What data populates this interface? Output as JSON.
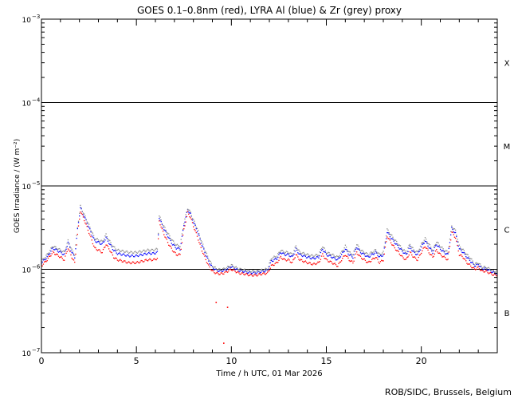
{
  "chart_data": {
    "type": "scatter",
    "title": "GOES 0.1–0.8nm (red), LYRA Al (blue) & Zr (grey) proxy",
    "xlabel": "Time / h UTC, 01 Mar 2026",
    "ylabel": "GOES Irradiance / (W m⁻²)",
    "xlim": [
      0,
      24
    ],
    "ylim": [
      1e-07,
      0.001
    ],
    "yscale": "log",
    "x_ticks": [
      0,
      5,
      10,
      15,
      20
    ],
    "x_tick_labels": [
      "0",
      "5",
      "10",
      "15",
      "20"
    ],
    "y_tick_exponents": [
      -3,
      -4,
      -5,
      -6,
      -7
    ],
    "flare_class_lines": [
      0.0001,
      1e-05,
      1e-06
    ],
    "flare_classes": [
      {
        "label": "X",
        "value": 0.0003
      },
      {
        "label": "M",
        "value": 3e-05
      },
      {
        "label": "C",
        "value": 3e-06
      },
      {
        "label": "B",
        "value": 3e-07
      }
    ],
    "series": [
      {
        "name": "GOES 0.1–0.8nm",
        "color": "#ff0000",
        "x": [
          0.0,
          0.3,
          0.6,
          0.8,
          1.0,
          1.2,
          1.4,
          1.6,
          1.75,
          1.9,
          2.05,
          2.2,
          2.4,
          2.6,
          2.8,
          3.0,
          3.2,
          3.4,
          3.6,
          3.8,
          4.0,
          4.3,
          4.6,
          5.0,
          5.3,
          5.6,
          5.9,
          6.1,
          6.2,
          6.35,
          6.5,
          6.7,
          6.9,
          7.1,
          7.3,
          7.5,
          7.7,
          7.85,
          8.0,
          8.2,
          8.4,
          8.6,
          8.8,
          9.0,
          9.2,
          9.4,
          9.6,
          9.8,
          10.0,
          10.2,
          10.4,
          10.7,
          11.0,
          11.3,
          11.6,
          11.9,
          12.1,
          12.4,
          12.6,
          12.8,
          13.0,
          13.2,
          13.4,
          13.6,
          13.8,
          14.0,
          14.3,
          14.6,
          14.8,
          15.0,
          15.3,
          15.6,
          15.8,
          16.0,
          16.2,
          16.4,
          16.6,
          16.8,
          17.0,
          17.2,
          17.4,
          17.6,
          17.8,
          18.0,
          18.2,
          18.4,
          18.6,
          18.8,
          19.0,
          19.2,
          19.4,
          19.6,
          19.8,
          20.0,
          20.2,
          20.4,
          20.6,
          20.8,
          21.0,
          21.2,
          21.4,
          21.6,
          21.8,
          22.0,
          22.2,
          22.4,
          22.6,
          22.8,
          23.0,
          23.2,
          23.4,
          23.6,
          23.8,
          24.0
        ],
        "y": [
          1.1e-06,
          1.3e-06,
          1.6e-06,
          1.5e-06,
          1.4e-06,
          1.3e-06,
          1.8e-06,
          1.4e-06,
          1.2e-06,
          2.6e-06,
          5e-06,
          4.2e-06,
          3.2e-06,
          2.4e-06,
          1.8e-06,
          1.7e-06,
          1.6e-06,
          2e-06,
          1.7e-06,
          1.4e-06,
          1.3e-06,
          1.25e-06,
          1.2e-06,
          1.2e-06,
          1.25e-06,
          1.3e-06,
          1.3e-06,
          1.35e-06,
          3.8e-06,
          3e-06,
          2.5e-06,
          2e-06,
          1.7e-06,
          1.5e-06,
          1.5e-06,
          3e-06,
          4.8e-06,
          4.2e-06,
          3.3e-06,
          2.5e-06,
          1.8e-06,
          1.4e-06,
          1.1e-06,
          9.5e-07,
          9e-07,
          8.8e-07,
          9e-07,
          9.5e-07,
          1e-06,
          9.5e-07,
          9e-07,
          8.8e-07,
          8.5e-07,
          8.5e-07,
          8.8e-07,
          9e-07,
          1.1e-06,
          1.2e-06,
          1.4e-06,
          1.3e-06,
          1.3e-06,
          1.2e-06,
          1.5e-06,
          1.3e-06,
          1.25e-06,
          1.2e-06,
          1.15e-06,
          1.2e-06,
          1.5e-06,
          1.3e-06,
          1.2e-06,
          1.1e-06,
          1.3e-06,
          1.5e-06,
          1.3e-06,
          1.2e-06,
          1.6e-06,
          1.4e-06,
          1.3e-06,
          1.2e-06,
          1.3e-06,
          1.4e-06,
          1.2e-06,
          1.3e-06,
          2.5e-06,
          2.1e-06,
          1.8e-06,
          1.6e-06,
          1.4e-06,
          1.3e-06,
          1.6e-06,
          1.4e-06,
          1.3e-06,
          1.6e-06,
          1.9e-06,
          1.6e-06,
          1.4e-06,
          1.7e-06,
          1.5e-06,
          1.4e-06,
          1.3e-06,
          2.8e-06,
          2.4e-06,
          1.5e-06,
          1.4e-06,
          1.2e-06,
          1.1e-06,
          1e-06,
          1.05e-06,
          9.5e-07,
          9.5e-07,
          9e-07,
          8.6e-07,
          8.5e-07
        ]
      },
      {
        "name": "LYRA Al proxy",
        "color": "#0000ff",
        "x": [
          0.0,
          0.3,
          0.6,
          0.8,
          1.0,
          1.2,
          1.4,
          1.6,
          1.75,
          1.9,
          2.05,
          2.2,
          2.4,
          2.6,
          2.8,
          3.0,
          3.2,
          3.4,
          3.6,
          3.8,
          4.0,
          4.3,
          4.6,
          5.0,
          5.3,
          5.6,
          5.9,
          6.1,
          6.2,
          6.35,
          6.5,
          6.7,
          6.9,
          7.1,
          7.3,
          7.5,
          7.7,
          7.85,
          8.0,
          8.2,
          8.4,
          8.6,
          8.8,
          9.0,
          9.2,
          9.4,
          9.6,
          9.8,
          10.0,
          10.2,
          10.4,
          10.7,
          11.0,
          11.3,
          11.6,
          11.9,
          12.1,
          12.4,
          12.6,
          12.8,
          13.0,
          13.2,
          13.4,
          13.6,
          13.8,
          14.0,
          14.3,
          14.6,
          14.8,
          15.0,
          15.3,
          15.6,
          15.8,
          16.0,
          16.2,
          16.4,
          16.6,
          16.8,
          17.0,
          17.2,
          17.4,
          17.6,
          17.8,
          18.0,
          18.2,
          18.4,
          18.6,
          18.8,
          19.0,
          19.2,
          19.4,
          19.6,
          19.8,
          20.0,
          20.2,
          20.4,
          20.6,
          20.8,
          21.0,
          21.2,
          21.4,
          21.6,
          21.8,
          22.0,
          22.2,
          22.4,
          22.6,
          22.8,
          23.0,
          23.2,
          23.4,
          23.6,
          23.8,
          24.0
        ],
        "y": [
          1.2e-06,
          1.4e-06,
          1.8e-06,
          1.7e-06,
          1.6e-06,
          1.5e-06,
          2.1e-06,
          1.6e-06,
          1.4e-06,
          3e-06,
          5.5e-06,
          4.6e-06,
          3.6e-06,
          2.8e-06,
          2.2e-06,
          2.1e-06,
          2e-06,
          2.4e-06,
          2e-06,
          1.7e-06,
          1.55e-06,
          1.5e-06,
          1.45e-06,
          1.45e-06,
          1.5e-06,
          1.55e-06,
          1.55e-06,
          1.6e-06,
          4.2e-06,
          3.4e-06,
          2.9e-06,
          2.4e-06,
          2e-06,
          1.8e-06,
          1.75e-06,
          3.4e-06,
          5.2e-06,
          4.6e-06,
          3.7e-06,
          2.9e-06,
          2.1e-06,
          1.6e-06,
          1.25e-06,
          1.05e-06,
          9.8e-07,
          9.5e-07,
          9.7e-07,
          1.02e-06,
          1.08e-06,
          1.02e-06,
          9.7e-07,
          9.4e-07,
          9.1e-07,
          9.1e-07,
          9.4e-07,
          9.7e-07,
          1.25e-06,
          1.35e-06,
          1.6e-06,
          1.5e-06,
          1.5e-06,
          1.4e-06,
          1.75e-06,
          1.5e-06,
          1.45e-06,
          1.4e-06,
          1.35e-06,
          1.4e-06,
          1.75e-06,
          1.5e-06,
          1.4e-06,
          1.3e-06,
          1.5e-06,
          1.75e-06,
          1.5e-06,
          1.4e-06,
          1.85e-06,
          1.6e-06,
          1.5e-06,
          1.4e-06,
          1.5e-06,
          1.6e-06,
          1.4e-06,
          1.5e-06,
          2.8e-06,
          2.4e-06,
          2.1e-06,
          1.85e-06,
          1.65e-06,
          1.5e-06,
          1.85e-06,
          1.6e-06,
          1.5e-06,
          1.85e-06,
          2.2e-06,
          1.85e-06,
          1.6e-06,
          2e-06,
          1.75e-06,
          1.6e-06,
          1.5e-06,
          3.1e-06,
          2.7e-06,
          1.75e-06,
          1.6e-06,
          1.4e-06,
          1.25e-06,
          1.1e-06,
          1.15e-06,
          1.02e-06,
          1.02e-06,
          9.7e-07,
          9.2e-07,
          9e-07
        ]
      },
      {
        "name": "LYRA Zr proxy",
        "color": "#8c8c8c",
        "x": [
          0.0,
          0.3,
          0.6,
          0.8,
          1.0,
          1.2,
          1.4,
          1.6,
          1.75,
          1.9,
          2.05,
          2.2,
          2.4,
          2.6,
          2.8,
          3.0,
          3.2,
          3.4,
          3.6,
          3.8,
          4.0,
          4.3,
          4.6,
          5.0,
          5.3,
          5.6,
          5.9,
          6.1,
          6.2,
          6.35,
          6.5,
          6.7,
          6.9,
          7.1,
          7.3,
          7.5,
          7.7,
          7.85,
          8.0,
          8.2,
          8.4,
          8.6,
          8.8,
          9.0,
          9.2,
          9.4,
          9.6,
          9.8,
          10.0,
          10.2,
          10.4,
          10.7,
          11.0,
          11.3,
          11.6,
          11.9,
          12.1,
          12.4,
          12.6,
          12.8,
          13.0,
          13.2,
          13.4,
          13.6,
          13.8,
          14.0,
          14.3,
          14.6,
          14.8,
          15.0,
          15.3,
          15.6,
          15.8,
          16.0,
          16.2,
          16.4,
          16.6,
          16.8,
          17.0,
          17.2,
          17.4,
          17.6,
          17.8,
          18.0,
          18.2,
          18.4,
          18.6,
          18.8,
          19.0,
          19.2,
          19.4,
          19.6,
          19.8,
          20.0,
          20.2,
          20.4,
          20.6,
          20.8,
          21.0,
          21.2,
          21.4,
          21.6,
          21.8,
          22.0,
          22.2,
          22.4,
          22.6,
          22.8,
          23.0,
          23.2,
          23.4,
          23.6,
          23.8,
          24.0
        ],
        "y": [
          1.25e-06,
          1.5e-06,
          1.9e-06,
          1.8e-06,
          1.7e-06,
          1.6e-06,
          2.2e-06,
          1.7e-06,
          1.5e-06,
          3.2e-06,
          5.7e-06,
          4.8e-06,
          3.8e-06,
          3e-06,
          2.35e-06,
          2.25e-06,
          2.15e-06,
          2.6e-06,
          2.15e-06,
          1.85e-06,
          1.7e-06,
          1.65e-06,
          1.6e-06,
          1.6e-06,
          1.65e-06,
          1.7e-06,
          1.7e-06,
          1.75e-06,
          4.4e-06,
          3.6e-06,
          3.1e-06,
          2.6e-06,
          2.2e-06,
          1.95e-06,
          1.9e-06,
          3.6e-06,
          5.4e-06,
          4.8e-06,
          3.9e-06,
          3.1e-06,
          2.25e-06,
          1.7e-06,
          1.35e-06,
          1.1e-06,
          1.02e-06,
          9.9e-07,
          1.01e-06,
          1.06e-06,
          1.12e-06,
          1.06e-06,
          1.01e-06,
          9.8e-07,
          9.5e-07,
          9.5e-07,
          9.8e-07,
          1.01e-06,
          1.35e-06,
          1.45e-06,
          1.7e-06,
          1.6e-06,
          1.6e-06,
          1.5e-06,
          1.9e-06,
          1.6e-06,
          1.55e-06,
          1.5e-06,
          1.45e-06,
          1.5e-06,
          1.9e-06,
          1.6e-06,
          1.5e-06,
          1.4e-06,
          1.6e-06,
          1.9e-06,
          1.6e-06,
          1.5e-06,
          2e-06,
          1.7e-06,
          1.6e-06,
          1.5e-06,
          1.6e-06,
          1.7e-06,
          1.5e-06,
          1.6e-06,
          3e-06,
          2.6e-06,
          2.25e-06,
          2e-06,
          1.75e-06,
          1.6e-06,
          2e-06,
          1.7e-06,
          1.6e-06,
          2e-06,
          2.35e-06,
          2e-06,
          1.7e-06,
          2.15e-06,
          1.9e-06,
          1.7e-06,
          1.6e-06,
          3.3e-06,
          2.9e-06,
          1.9e-06,
          1.7e-06,
          1.5e-06,
          1.35e-06,
          1.15e-06,
          1.2e-06,
          1.06e-06,
          1.06e-06,
          1.01e-06,
          9.6e-07,
          9.4e-07
        ]
      }
    ],
    "outliers": {
      "color": "#ff0000",
      "x": [
        9.2,
        9.8,
        9.6
      ],
      "y": [
        4e-07,
        3.5e-07,
        1.3e-07
      ]
    }
  },
  "footer": {
    "credit": "ROB/SIDC, Brussels, Belgium"
  }
}
